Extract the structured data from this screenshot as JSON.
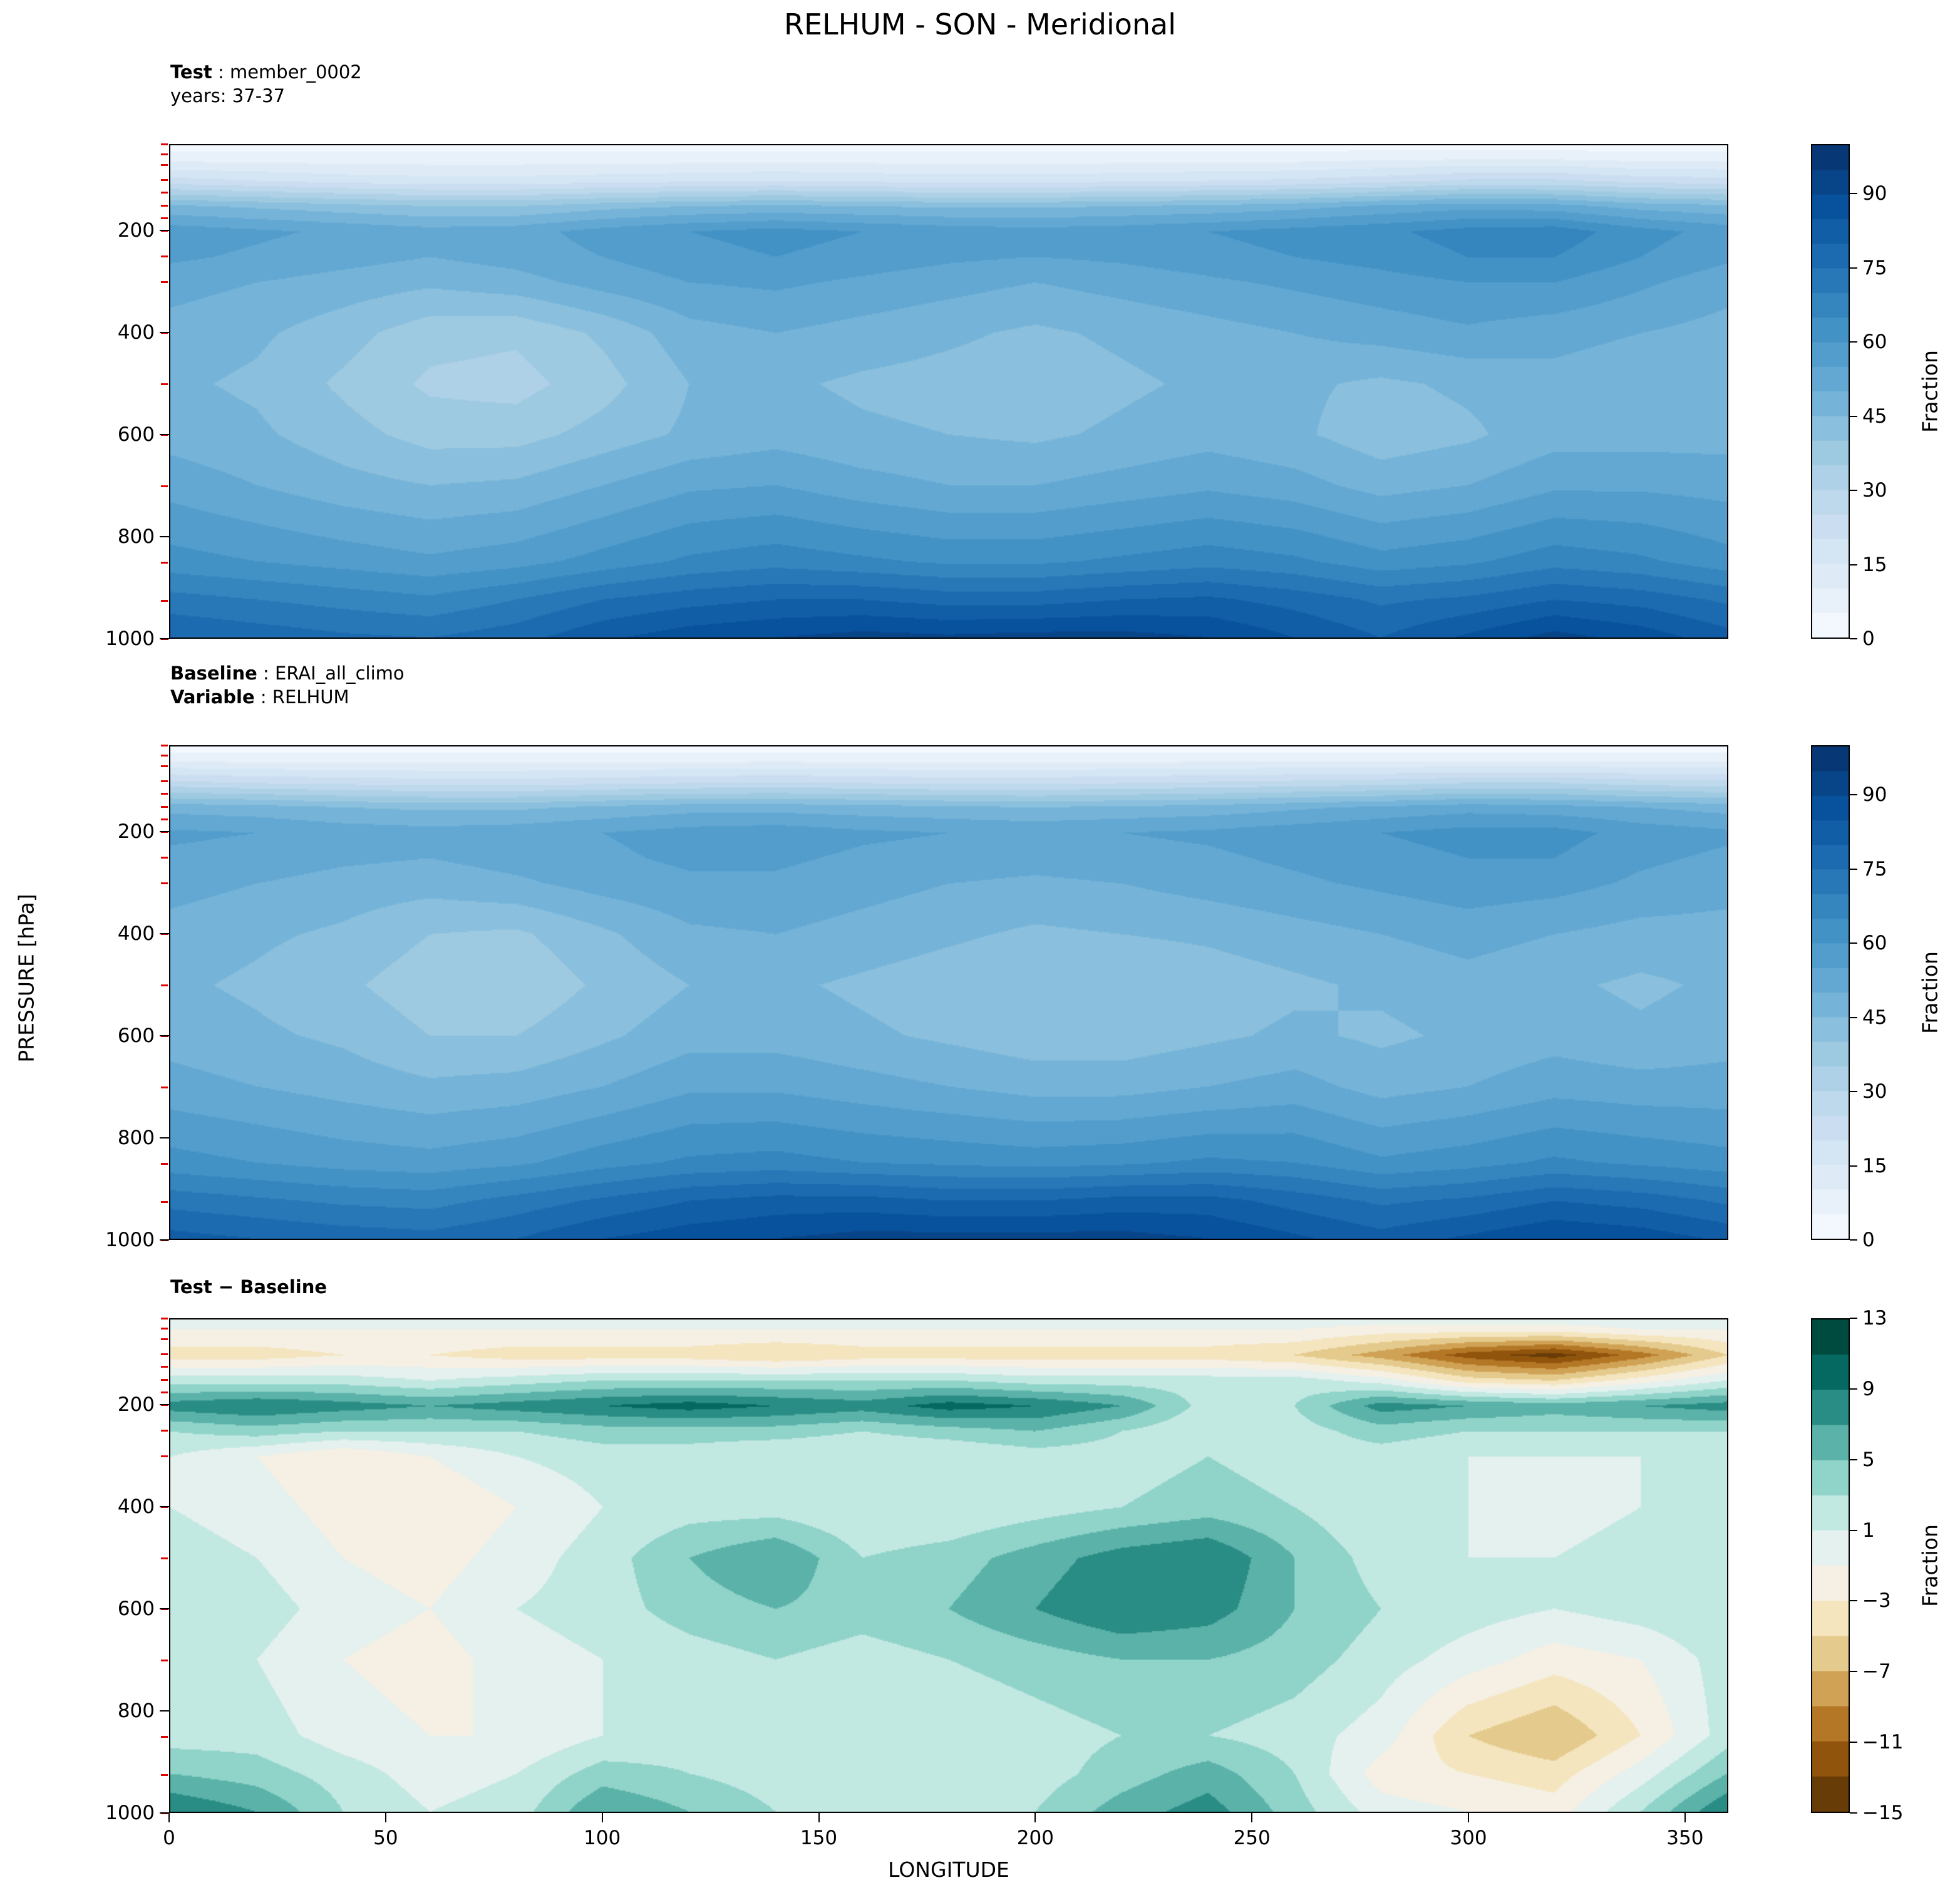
{
  "title": "RELHUM - SON - Meridional",
  "annotations": {
    "test": {
      "line1_bold": "Test",
      "line1_rest": " : member_0002",
      "line2": "years: 37-37"
    },
    "baseline": {
      "line1_bold": "Baseline",
      "line1_rest": " : ERAI_all_climo",
      "line2_bold": "Variable",
      "line2_rest": " : RELHUM"
    },
    "diff": {
      "line1": "Test − Baseline"
    }
  },
  "axes": {
    "x": {
      "label": "LONGITUDE",
      "min": 0,
      "max": 360,
      "ticks": [
        0,
        50,
        100,
        150,
        200,
        250,
        300,
        350
      ]
    },
    "y": {
      "label": "PRESSURE [hPa]",
      "min": 30,
      "max": 1000,
      "ticks": [
        200,
        400,
        600,
        800,
        1000
      ],
      "minor_ticks": [
        30,
        50,
        70,
        100,
        125,
        150,
        175,
        200,
        250,
        300,
        400,
        500,
        600,
        700,
        850,
        925,
        1000
      ]
    }
  },
  "colorbars": [
    {
      "label": "Fraction",
      "vmin": 0,
      "vmax": 100,
      "step": 5,
      "cmap": "blues",
      "ticks": [
        0,
        15,
        30,
        45,
        60,
        75,
        90
      ]
    },
    {
      "label": "Fraction",
      "vmin": 0,
      "vmax": 100,
      "step": 5,
      "cmap": "blues",
      "ticks": [
        0,
        15,
        30,
        45,
        60,
        75,
        90
      ]
    },
    {
      "label": "Fraction",
      "vmin": -15,
      "vmax": 13,
      "step": 2,
      "cmap": "brbg",
      "ticks": [
        -15,
        -11,
        -7,
        -3,
        1,
        5,
        9,
        13
      ]
    }
  ],
  "colormaps": {
    "blues": [
      "#f7fbff",
      "#deebf7",
      "#c6dbef",
      "#9ecae1",
      "#6baed6",
      "#4292c6",
      "#2171b5",
      "#08519c",
      "#08306b"
    ],
    "brbg": [
      "#543005",
      "#8c510a",
      "#bf812d",
      "#dfc27d",
      "#f6e8c3",
      "#f5f5f5",
      "#c7eae5",
      "#80cdc1",
      "#35978f",
      "#01665e",
      "#003c30"
    ]
  },
  "chart_data": [
    {
      "type": "heatmap",
      "title": "Test : member_0002 (years: 37-37)",
      "units": "Fraction",
      "vmin": 0,
      "vmax": 100,
      "contour_step": 5,
      "colormap": "blues",
      "x_longitude": [
        0,
        20,
        40,
        60,
        80,
        100,
        120,
        140,
        160,
        180,
        200,
        220,
        240,
        260,
        280,
        300,
        320,
        340,
        360
      ],
      "y_pressure_hPa": [
        30,
        50,
        100,
        150,
        200,
        250,
        300,
        400,
        500,
        600,
        700,
        850,
        925,
        1000
      ],
      "values": [
        [
          3,
          3,
          3,
          3,
          3,
          3,
          3,
          3,
          3,
          3,
          3,
          3,
          3,
          3,
          3,
          3,
          3,
          3,
          3
        ],
        [
          6,
          6,
          6,
          6,
          6,
          6,
          6,
          6,
          6,
          6,
          6,
          6,
          6,
          6,
          7,
          7,
          7,
          6,
          6
        ],
        [
          22,
          20,
          18,
          17,
          17,
          18,
          19,
          20,
          19,
          18,
          18,
          19,
          20,
          21,
          23,
          26,
          26,
          23,
          22
        ],
        [
          46,
          44,
          42,
          40,
          40,
          43,
          45,
          46,
          45,
          44,
          44,
          45,
          46,
          48,
          51,
          53,
          52,
          48,
          46
        ],
        [
          58,
          56,
          54,
          52,
          53,
          57,
          60,
          62,
          60,
          58,
          57,
          58,
          60,
          62,
          64,
          67,
          68,
          62,
          58
        ],
        [
          56,
          54,
          52,
          50,
          52,
          55,
          58,
          60,
          58,
          56,
          55,
          56,
          58,
          60,
          62,
          65,
          65,
          60,
          56
        ],
        [
          52,
          50,
          48,
          46,
          48,
          52,
          55,
          56,
          54,
          52,
          50,
          52,
          54,
          56,
          58,
          60,
          60,
          56,
          52
        ],
        [
          48,
          46,
          42,
          37,
          36,
          41,
          48,
          50,
          48,
          46,
          44,
          46,
          48,
          50,
          52,
          54,
          52,
          50,
          48
        ],
        [
          46,
          44,
          39,
          34,
          33,
          38,
          45,
          46,
          44,
          43,
          42,
          44,
          46,
          46,
          44,
          46,
          48,
          46,
          46
        ],
        [
          48,
          46,
          42,
          38,
          38,
          42,
          46,
          48,
          46,
          45,
          44,
          46,
          48,
          46,
          42,
          44,
          48,
          48,
          48
        ],
        [
          53,
          50,
          47,
          45,
          46,
          50,
          54,
          55,
          52,
          50,
          50,
          52,
          54,
          52,
          48,
          50,
          54,
          54,
          53
        ],
        [
          62,
          60,
          58,
          56,
          58,
          62,
          66,
          68,
          66,
          64,
          64,
          66,
          68,
          66,
          62,
          64,
          68,
          66,
          62
        ],
        [
          72,
          70,
          68,
          66,
          70,
          75,
          78,
          80,
          80,
          78,
          78,
          80,
          81,
          78,
          74,
          76,
          80,
          78,
          74
        ],
        [
          80,
          78,
          76,
          75,
          78,
          84,
          88,
          90,
          92,
          91,
          92,
          92,
          90,
          85,
          80,
          86,
          92,
          88,
          82
        ]
      ]
    },
    {
      "type": "heatmap",
      "title": "Baseline : ERAI_all_climo (RELHUM)",
      "units": "Fraction",
      "vmin": 0,
      "vmax": 100,
      "contour_step": 5,
      "colormap": "blues",
      "x_longitude": [
        0,
        20,
        40,
        60,
        80,
        100,
        120,
        140,
        160,
        180,
        200,
        220,
        240,
        260,
        280,
        300,
        320,
        340,
        360
      ],
      "y_pressure_hPa": [
        30,
        50,
        100,
        150,
        200,
        250,
        300,
        400,
        500,
        600,
        700,
        850,
        925,
        1000
      ],
      "values": [
        [
          3,
          3,
          3,
          3,
          3,
          3,
          3,
          3,
          3,
          3,
          3,
          3,
          3,
          3,
          3,
          3,
          3,
          3,
          3
        ],
        [
          6,
          6,
          6,
          6,
          6,
          6,
          6,
          6,
          6,
          6,
          6,
          6,
          6,
          6,
          6,
          6,
          6,
          6,
          6
        ],
        [
          26,
          24,
          23,
          22,
          22,
          23,
          24,
          25,
          24,
          23,
          23,
          24,
          25,
          26,
          27,
          29,
          29,
          27,
          26
        ],
        [
          48,
          47,
          45,
          44,
          44,
          46,
          48,
          48,
          47,
          46,
          45,
          46,
          47,
          49,
          51,
          53,
          52,
          50,
          48
        ],
        [
          56,
          55,
          53,
          52,
          53,
          55,
          57,
          58,
          56,
          55,
          54,
          55,
          56,
          58,
          60,
          62,
          62,
          58,
          56
        ],
        [
          54,
          53,
          51,
          50,
          52,
          54,
          56,
          56,
          54,
          53,
          52,
          53,
          54,
          56,
          58,
          60,
          60,
          56,
          54
        ],
        [
          52,
          50,
          48,
          47,
          49,
          52,
          54,
          54,
          52,
          50,
          49,
          50,
          52,
          54,
          56,
          58,
          57,
          54,
          52
        ],
        [
          48,
          46,
          44,
          40,
          39,
          44,
          49,
          50,
          48,
          46,
          44,
          45,
          46,
          48,
          50,
          52,
          50,
          48,
          48
        ],
        [
          46,
          44,
          41,
          37,
          36,
          41,
          45,
          46,
          44,
          42,
          40,
          40,
          42,
          44,
          46,
          48,
          46,
          44,
          46
        ],
        [
          48,
          46,
          44,
          40,
          40,
          44,
          48,
          48,
          46,
          44,
          42,
          42,
          44,
          46,
          44,
          46,
          48,
          46,
          48
        ],
        [
          52,
          50,
          48,
          46,
          47,
          50,
          54,
          54,
          52,
          50,
          48,
          48,
          50,
          52,
          48,
          50,
          53,
          52,
          52
        ],
        [
          62,
          60,
          58,
          57,
          59,
          63,
          66,
          67,
          65,
          64,
          63,
          64,
          66,
          65,
          61,
          63,
          66,
          64,
          62
        ],
        [
          73,
          71,
          69,
          68,
          72,
          76,
          80,
          82,
          82,
          80,
          80,
          82,
          82,
          78,
          74,
          76,
          80,
          78,
          74
        ],
        [
          82,
          80,
          78,
          77,
          80,
          85,
          88,
          90,
          92,
          92,
          92,
          92,
          90,
          86,
          82,
          86,
          90,
          88,
          84
        ]
      ]
    },
    {
      "type": "heatmap",
      "title": "Test − Baseline",
      "units": "Fraction",
      "vmin": -15,
      "vmax": 13,
      "contour_step": 2,
      "colormap": "brbg",
      "x_longitude": [
        0,
        20,
        40,
        60,
        80,
        100,
        120,
        140,
        160,
        180,
        200,
        220,
        240,
        260,
        280,
        300,
        320,
        340,
        360
      ],
      "y_pressure_hPa": [
        30,
        50,
        100,
        150,
        200,
        250,
        300,
        400,
        500,
        600,
        700,
        850,
        925,
        1000
      ],
      "values": [
        [
          0,
          0,
          0,
          0,
          0,
          0,
          0,
          0,
          0,
          0,
          0,
          0,
          0,
          0,
          0,
          0,
          0,
          0,
          0
        ],
        [
          -1,
          -1,
          -1,
          -1,
          -1,
          -1,
          -1,
          -1,
          -1,
          -1,
          -1,
          -1,
          -1,
          -1,
          -2,
          -2,
          -2,
          -1,
          -1
        ],
        [
          -4,
          -4,
          -3,
          -3,
          -4,
          -4,
          -4,
          -5,
          -4,
          -4,
          -4,
          -4,
          -4,
          -5,
          -8,
          -12,
          -14,
          -10,
          -5
        ],
        [
          2,
          2,
          2,
          1,
          2,
          3,
          3,
          3,
          3,
          3,
          2,
          2,
          2,
          2,
          0,
          -4,
          -5,
          -2,
          1
        ],
        [
          8,
          9,
          8,
          7,
          8,
          9,
          10,
          9,
          8,
          10,
          9,
          7,
          2,
          3,
          8,
          7,
          6,
          7,
          8
        ],
        [
          3,
          4,
          3,
          3,
          3,
          4,
          4,
          4,
          3,
          4,
          5,
          3,
          1,
          2,
          4,
          3,
          3,
          3,
          3
        ],
        [
          1,
          -1,
          -3,
          -1,
          1,
          2,
          2,
          1,
          1,
          1,
          2,
          2,
          3,
          2,
          2,
          1,
          1,
          1,
          1
        ],
        [
          1,
          0,
          -2,
          -3,
          -1,
          1,
          2,
          2,
          1,
          1,
          2,
          3,
          4,
          3,
          1,
          1,
          0,
          1,
          1
        ],
        [
          2,
          1,
          -1,
          -2,
          0,
          2,
          5,
          7,
          3,
          4,
          6,
          8,
          9,
          5,
          2,
          1,
          1,
          2,
          2
        ],
        [
          3,
          2,
          0,
          -1,
          1,
          2,
          4,
          5,
          4,
          5,
          7,
          9,
          8,
          5,
          3,
          2,
          1,
          2,
          3
        ],
        [
          2,
          1,
          -1,
          -2,
          0,
          1,
          2,
          3,
          2,
          3,
          4,
          5,
          5,
          4,
          2,
          0,
          -2,
          -1,
          2
        ],
        [
          2,
          2,
          0,
          -1,
          -1,
          1,
          2,
          2,
          1,
          1,
          2,
          3,
          3,
          2,
          0,
          -5,
          -7,
          -3,
          2
        ],
        [
          5,
          4,
          2,
          0,
          1,
          4,
          3,
          2,
          1,
          1,
          2,
          4,
          6,
          3,
          -2,
          -3,
          -4,
          0,
          5
        ],
        [
          9,
          7,
          3,
          1,
          2,
          7,
          5,
          3,
          2,
          2,
          3,
          6,
          8,
          4,
          0,
          -1,
          -2,
          3,
          9
        ]
      ]
    }
  ]
}
